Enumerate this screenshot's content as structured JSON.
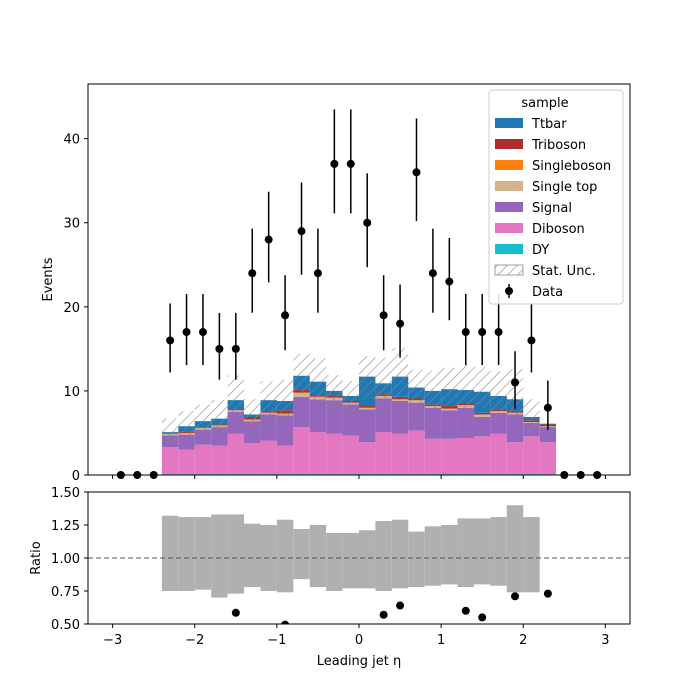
{
  "chart_data": [
    {
      "type": "bar",
      "subtype": "stacked-histogram",
      "xlim": [
        -3.3,
        3.3
      ],
      "ylim": [
        0,
        46.5
      ],
      "ylabel": "Events",
      "xticks": [
        -3,
        -2,
        -1,
        0,
        1,
        2,
        3
      ],
      "xticks_labeled": false,
      "yticks": [
        0,
        10,
        20,
        30,
        40
      ],
      "ytick_labels": [
        "0",
        "10",
        "20",
        "30",
        "40"
      ],
      "legend": {
        "title": "sample",
        "placement": "top-right",
        "entries": [
          "Ttbar",
          "Triboson",
          "Singleboson",
          "Single top",
          "Signal",
          "Diboson",
          "DY",
          "Stat. Unc.",
          "Data"
        ]
      },
      "bin_edges": [
        -3.0,
        -2.8,
        -2.6,
        -2.4,
        -2.2,
        -2.0,
        -1.8,
        -1.6,
        -1.4,
        -1.2,
        -1.0,
        -0.8,
        -0.6,
        -0.4,
        -0.2,
        0.0,
        0.2,
        0.4,
        0.6,
        0.8,
        1.0,
        1.2,
        1.4,
        1.6,
        1.8,
        2.0,
        2.2,
        2.4,
        2.6,
        2.8,
        3.0
      ],
      "stack_order_bottom_to_top": [
        "DY",
        "Diboson",
        "Signal",
        "Single top",
        "Singleboson",
        "Triboson",
        "Ttbar"
      ],
      "series": [
        {
          "name": "DY",
          "color": "#17becf",
          "values": [
            0,
            0,
            0,
            0.1,
            0.1,
            0.1,
            0.1,
            0.1,
            0.1,
            0.1,
            0.1,
            0.1,
            0.1,
            0.1,
            0.1,
            0.1,
            0.1,
            0.1,
            0.1,
            0.1,
            0.1,
            0.1,
            0.1,
            0.1,
            0.1,
            0.1,
            0.1,
            0,
            0,
            0
          ]
        },
        {
          "name": "Diboson",
          "color": "#e377c2",
          "values": [
            0,
            0,
            0,
            3.2,
            2.9,
            3.5,
            3.4,
            4.8,
            3.7,
            4.0,
            3.4,
            5.6,
            5.0,
            4.8,
            4.6,
            3.8,
            5.0,
            4.8,
            5.2,
            4.2,
            4.2,
            4.3,
            4.5,
            4.8,
            3.8,
            4.5,
            3.8,
            0,
            0,
            0
          ]
        },
        {
          "name": "Signal",
          "color": "#9467bd",
          "values": [
            0,
            0,
            0,
            1.4,
            1.8,
            1.8,
            2.2,
            2.6,
            2.6,
            3.1,
            3.6,
            3.6,
            3.9,
            4.0,
            3.7,
            3.9,
            4.0,
            3.9,
            3.3,
            3.7,
            3.4,
            3.6,
            2.3,
            2.5,
            3.3,
            1.6,
            1.8,
            0,
            0,
            0
          ]
        },
        {
          "name": "Single top",
          "color": "#d4b38a",
          "values": [
            0,
            0,
            0,
            0.2,
            0.2,
            0.2,
            0.2,
            0.2,
            0.2,
            0.2,
            0.2,
            0.5,
            0.3,
            0.3,
            0.2,
            0.2,
            0.3,
            0.2,
            0.3,
            0.2,
            0.2,
            0.3,
            0.3,
            0.2,
            0.2,
            0.1,
            0.1,
            0,
            0,
            0
          ]
        },
        {
          "name": "Singleboson",
          "color": "#ff7f0e",
          "values": [
            0,
            0,
            0,
            0,
            0,
            0,
            0,
            0,
            0,
            0,
            0,
            0,
            0,
            0,
            0,
            0,
            0,
            0,
            0,
            0,
            0,
            0,
            0,
            0,
            0,
            0,
            0,
            0,
            0,
            0
          ]
        },
        {
          "name": "Triboson",
          "color": "#b22d2d",
          "values": [
            0,
            0,
            0,
            0.1,
            0.2,
            0.1,
            0.1,
            0.1,
            0.3,
            0.2,
            0.4,
            0.3,
            0.2,
            0.2,
            0.2,
            0.2,
            0.2,
            0.3,
            0.2,
            0.2,
            0.3,
            0.2,
            0.2,
            0.2,
            0.2,
            0.2,
            0.2,
            0,
            0,
            0
          ]
        },
        {
          "name": "Ttbar",
          "color": "#1f77b4",
          "values": [
            0,
            0,
            0,
            0.1,
            0.6,
            0.7,
            0.7,
            1.1,
            0.3,
            1.3,
            1.1,
            1.7,
            1.6,
            0.6,
            0.6,
            3.5,
            1.3,
            2.4,
            1.3,
            1.6,
            2.0,
            1.6,
            2.5,
            1.6,
            1.4,
            0.4,
            0.1,
            0,
            0,
            0
          ]
        }
      ],
      "stat_unc": {
        "name": "Stat. Unc.",
        "hatch": "////",
        "color": "#999999",
        "rel_down": [
          0,
          0,
          0,
          0.25,
          0.25,
          0.24,
          0.3,
          0.27,
          0.22,
          0.25,
          0.26,
          0.16,
          0.22,
          0.25,
          0.23,
          0.23,
          0.25,
          0.23,
          0.22,
          0.21,
          0.2,
          0.22,
          0.2,
          0.21,
          0.26,
          0.26,
          0,
          0,
          0,
          0
        ],
        "rel_up": [
          0,
          0,
          0,
          0.32,
          0.31,
          0.31,
          0.33,
          0.33,
          0.26,
          0.25,
          0.29,
          0.22,
          0.25,
          0.19,
          0.19,
          0.21,
          0.28,
          0.29,
          0.2,
          0.24,
          0.25,
          0.3,
          0.3,
          0.31,
          0.4,
          0.31,
          0,
          0,
          0,
          0
        ]
      },
      "data": {
        "name": "Data",
        "color": "#000000",
        "x": [
          -2.9,
          -2.7,
          -2.5,
          -2.3,
          -2.1,
          -1.9,
          -1.7,
          -1.5,
          -1.3,
          -1.1,
          -0.9,
          -0.7,
          -0.5,
          -0.3,
          -0.1,
          0.1,
          0.3,
          0.5,
          0.7,
          0.9,
          1.1,
          1.3,
          1.5,
          1.7,
          1.9,
          2.1,
          2.3,
          2.5,
          2.7,
          2.9
        ],
        "y": [
          0,
          0,
          0,
          16,
          17,
          17,
          15,
          15,
          24,
          28,
          19,
          29,
          24,
          37,
          37,
          30,
          19,
          18,
          36,
          24,
          23,
          17,
          17,
          17,
          11,
          16,
          8,
          0,
          0,
          0
        ]
      }
    },
    {
      "type": "scatter",
      "subtype": "ratio-panel",
      "xlim": [
        -3.3,
        3.3
      ],
      "ylim": [
        0.5,
        1.5
      ],
      "xlabel": "Leading jet  η",
      "ylabel": "Ratio",
      "xticks": [
        -3,
        -2,
        -1,
        0,
        1,
        2,
        3
      ],
      "xtick_labels": [
        "−3",
        "−2",
        "−1",
        "0",
        "1",
        "2",
        "3"
      ],
      "yticks": [
        0.5,
        0.75,
        1.0,
        1.25,
        1.5
      ],
      "ytick_labels": [
        "0.50",
        "0.75",
        "1.00",
        "1.25",
        "1.50"
      ],
      "reference_line": 1.0,
      "unc_band": {
        "color": "#b0b0b0",
        "bin_edges": [
          -2.4,
          2.2
        ],
        "lo": [
          0.75,
          0.75,
          0.76,
          0.7,
          0.73,
          0.78,
          0.75,
          0.74,
          0.84,
          0.78,
          0.75,
          0.77,
          0.77,
          0.75,
          0.75,
          0.79,
          0.77,
          0.8,
          0.79,
          0.8,
          0.78,
          0.8,
          0.79,
          0
        ],
        "hi": [
          1.32,
          1.31,
          1.31,
          1.33,
          1.33,
          1.26,
          1.25,
          1.29,
          1.22,
          1.25,
          1.19,
          1.19,
          1.21,
          1.28,
          1.29,
          1.2,
          1.24,
          1.25,
          1.3,
          1.3,
          1.31,
          1.4,
          1.31,
          0
        ]
      },
      "points": {
        "color": "#000000",
        "x": [
          -1.5,
          -0.9,
          0.3,
          0.5,
          1.3,
          1.5,
          1.9,
          2.3
        ],
        "y": [
          0.585,
          0.495,
          0.57,
          0.64,
          0.6,
          0.55,
          0.71,
          0.73
        ]
      }
    }
  ]
}
